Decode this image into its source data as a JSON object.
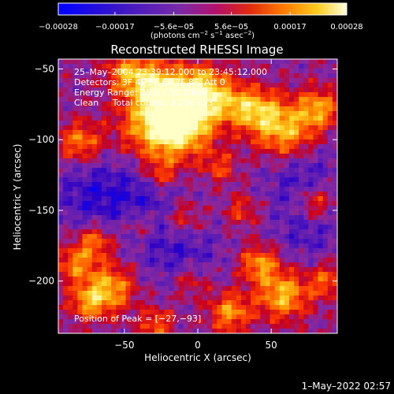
{
  "chart_data": {
    "type": "heatmap",
    "title": "Reconstructed RHESSI Image",
    "xlabel": "Heliocentric X (arcsec)",
    "ylabel": "Heliocentric Y (arcsec)",
    "xlim": [
      -95,
      95
    ],
    "ylim": [
      -237,
      -43
    ],
    "x_ticks": [
      -50,
      0,
      50
    ],
    "x_tick_labels": [
      "−50",
      "0",
      "50"
    ],
    "y_ticks": [
      -50,
      -100,
      -150,
      -200
    ],
    "y_tick_labels": [
      "−50",
      "−100",
      "−150",
      "−200"
    ],
    "colorbar": {
      "min": -0.00028,
      "max": 0.00028,
      "tick_values": [
        -0.00028,
        -0.00017,
        -5.6e-05,
        5.6e-05,
        0.00017,
        0.00028
      ],
      "tick_labels": [
        "−0.00028",
        "−0.00017",
        "−5.6e−05",
        "5.6e−05",
        "0.00017",
        "0.00028"
      ],
      "units_text": "(photons cm",
      "units_exp1": "−2",
      "units_mid": " s",
      "units_exp2": "−1",
      "units_mid2": " asec",
      "units_exp3": "−2",
      "units_end": ")"
    },
    "annotations": {
      "time_range": "25–May–2004 23:39:12.000 to 23:45:12.000",
      "detectors": "Detectors: 3F 4F 5F 6F 7F 8F, Att 0",
      "energy": "Energy Range: 25.0 – 50.0 keV",
      "method": "Clean     Total counts: 9.25E+03",
      "peak": "Position of Peak = [−27,−93]"
    },
    "peak_position": [
      -27,
      -93
    ],
    "colors": {
      "background": "#000000",
      "text": "#ffffff",
      "colormap": [
        "#0000ff",
        "#2a00c8",
        "#5a1cb4",
        "#8a28a0",
        "#c8001e",
        "#ff3c00",
        "#ff9600",
        "#ffdc32",
        "#ffffc8"
      ]
    }
  },
  "footer": {
    "timestamp": "1–May–2022 02:57"
  }
}
